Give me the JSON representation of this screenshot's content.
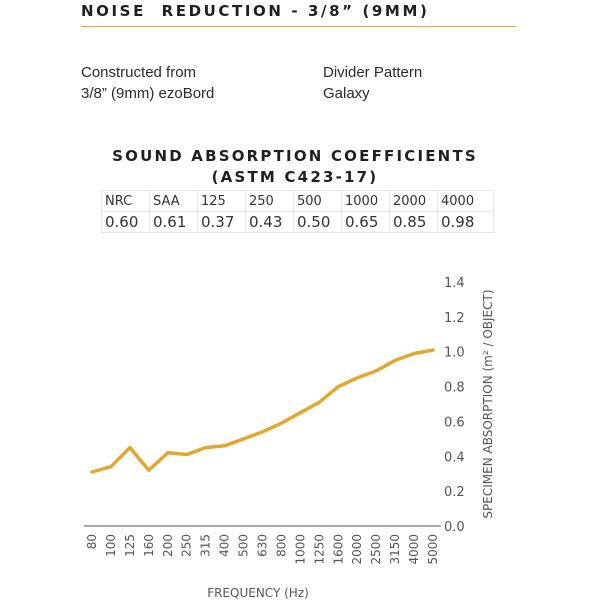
{
  "header": {
    "title": "NOISE  REDUCTION - 3/8” (9MM)",
    "accent_color": "#e3a72f"
  },
  "info": {
    "left_line1": "Constructed from",
    "left_line2": "3/8” (9mm) ezoBord",
    "right_line1": "Divider Pattern",
    "right_line2": "Galaxy"
  },
  "coefficients": {
    "title_line1": "SOUND ABSORPTION COEFFICIENTS",
    "title_line2": "(ASTM C423-17)",
    "headers": [
      "NRC",
      "SAA",
      "125",
      "250",
      "500",
      "1000",
      "2000",
      "4000"
    ],
    "values": [
      "0.60",
      "0.61",
      "0.37",
      "0.43",
      "0.50",
      "0.65",
      "0.85",
      "0.98"
    ]
  },
  "chart_data": {
    "type": "line",
    "x": [
      "80",
      "100",
      "125",
      "160",
      "200",
      "250",
      "315",
      "400",
      "500",
      "630",
      "800",
      "1000",
      "1250",
      "1600",
      "2000",
      "2500",
      "3150",
      "4000",
      "5000"
    ],
    "series": [
      {
        "values": [
          0.31,
          0.34,
          0.45,
          0.32,
          0.42,
          0.41,
          0.45,
          0.46,
          0.5,
          0.54,
          0.59,
          0.65,
          0.71,
          0.8,
          0.85,
          0.89,
          0.95,
          0.99,
          1.01
        ],
        "color": "#e3a72f"
      }
    ],
    "xlabel": "FREQUENCY (Hz)",
    "ylabel": "SPECIMEN ABSORPTION (m² / OBJECT)",
    "y_ticks": [
      "0.0",
      "0.2",
      "0.4",
      "0.6",
      "0.8",
      "1.0",
      "1.2",
      "1.4"
    ],
    "ylim": [
      0,
      1.4
    ],
    "grid": false,
    "legend": "none"
  }
}
